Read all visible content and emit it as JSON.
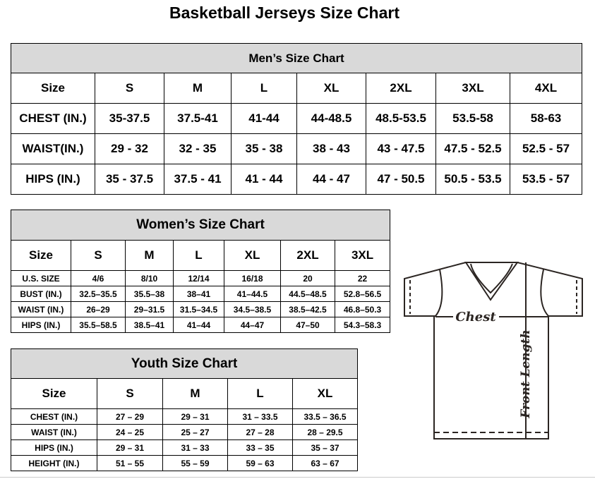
{
  "title": "Basketball Jerseys Size Chart",
  "men": {
    "title": "Men’s Size Chart",
    "header": [
      "Size",
      "S",
      "M",
      "L",
      "XL",
      "2XL",
      "3XL",
      "4XL"
    ],
    "rows": [
      [
        "CHEST (IN.)",
        "35-37.5",
        "37.5-41",
        "41-44",
        "44-48.5",
        "48.5-53.5",
        "53.5-58",
        "58-63"
      ],
      [
        "WAIST(IN.)",
        "29 - 32",
        "32 - 35",
        "35 - 38",
        "38 - 43",
        "43 - 47.5",
        "47.5 - 52.5",
        "52.5 - 57"
      ],
      [
        "HIPS (IN.)",
        "35 - 37.5",
        "37.5 - 41",
        "41 - 44",
        "44 - 47",
        "47 - 50.5",
        "50.5 - 53.5",
        "53.5 - 57"
      ]
    ]
  },
  "women": {
    "title": "Women’s Size Chart",
    "header": [
      "Size",
      "S",
      "M",
      "L",
      "XL",
      "2XL",
      "3XL"
    ],
    "rows": [
      [
        "U.S. SIZE",
        "4/6",
        "8/10",
        "12/14",
        "16/18",
        "20",
        "22"
      ],
      [
        "BUST (IN.)",
        "32.5–35.5",
        "35.5–38",
        "38–41",
        "41–44.5",
        "44.5–48.5",
        "52.8–56.5"
      ],
      [
        "WAIST (IN.)",
        "26–29",
        "29–31.5",
        "31.5–34.5",
        "34.5–38.5",
        "38.5–42.5",
        "46.8–50.3"
      ],
      [
        "HIPS (IN.)",
        "35.5–58.5",
        "38.5–41",
        "41–44",
        "44–47",
        "47–50",
        "54.3–58.3"
      ]
    ]
  },
  "youth": {
    "title": "Youth Size Chart",
    "header": [
      "Size",
      "S",
      "M",
      "L",
      "XL"
    ],
    "rows": [
      [
        "CHEST (IN.)",
        "27 – 29",
        "29 – 31",
        "31 – 33.5",
        "33.5 – 36.5"
      ],
      [
        "WAIST (IN.)",
        "24 – 25",
        "25 – 27",
        "27 – 28",
        "28 – 29.5"
      ],
      [
        "HIPS (IN.)",
        "29 – 31",
        "31 – 33",
        "33 – 35",
        "35 – 37"
      ],
      [
        "HEIGHT (IN.)",
        "51 – 55",
        "55 – 59",
        "59 – 63",
        "63 – 67"
      ]
    ]
  },
  "diagram": {
    "chest_label": "Chest",
    "length_label": "Front Length"
  },
  "colors": {
    "header_bg": "#d9d9d9",
    "shirt_stroke": "#2b2522"
  }
}
